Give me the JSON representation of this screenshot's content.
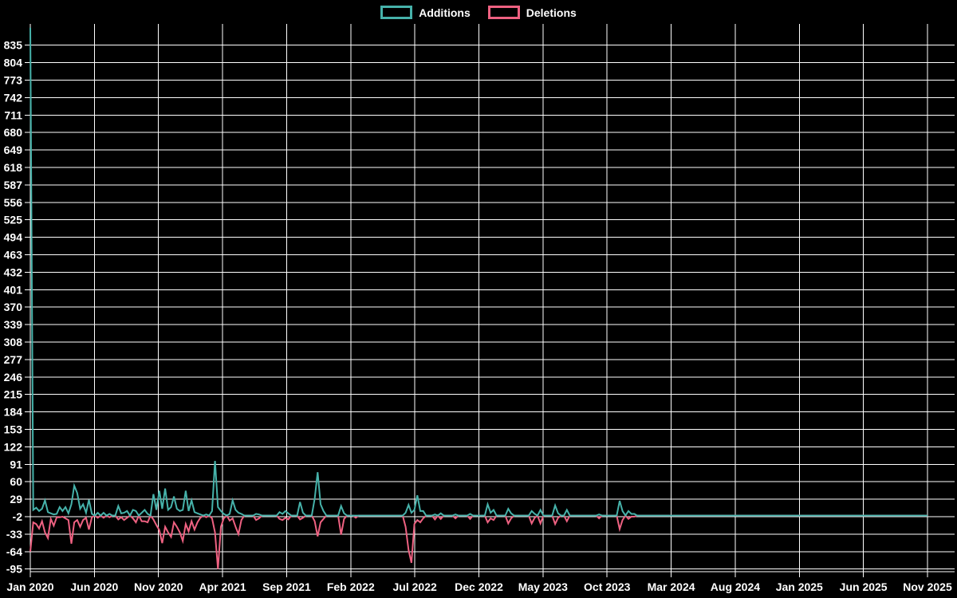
{
  "legend": [
    {
      "label": "Additions",
      "color": "#46b2aa"
    },
    {
      "label": "Deletions",
      "color": "#ee6181"
    }
  ],
  "chart_data": {
    "type": "line",
    "title": "",
    "xlabel": "",
    "ylabel": "",
    "background_color": "#000000",
    "grid": true,
    "grid_color": "#ffffff",
    "text_color": "#ffffff",
    "legend_position": "top-center",
    "x_tick_labels": [
      "Jan 2020",
      "Jun 2020",
      "Nov 2020",
      "Apr 2021",
      "Sep 2021",
      "Feb 2022",
      "Jul 2022",
      "Dec 2022",
      "May 2023",
      "Oct 2023",
      "Mar 2024",
      "Aug 2024",
      "Jan 2025",
      "Jun 2025",
      "Nov 2025"
    ],
    "y_ticks": [
      835,
      804,
      773,
      742,
      711,
      680,
      649,
      618,
      587,
      556,
      525,
      494,
      463,
      432,
      401,
      370,
      339,
      308,
      277,
      246,
      215,
      184,
      153,
      122,
      91,
      60,
      29,
      -2,
      -33,
      -64,
      -95
    ],
    "ylim": [
      -109,
      880
    ],
    "x_start": "Jan 2020",
    "x_end": "Nov 2025",
    "x_unit": "week",
    "total_weeks": 307,
    "flat_default_value": 0,
    "series": [
      {
        "name": "Additions",
        "color": "#46b2aa",
        "points": [
          [
            0,
            866
          ],
          [
            1,
            10
          ],
          [
            2,
            14
          ],
          [
            3,
            8
          ],
          [
            4,
            12
          ],
          [
            5,
            27
          ],
          [
            6,
            6
          ],
          [
            7,
            4
          ],
          [
            8,
            2
          ],
          [
            9,
            3
          ],
          [
            10,
            15
          ],
          [
            11,
            8
          ],
          [
            12,
            15
          ],
          [
            13,
            4
          ],
          [
            14,
            20
          ],
          [
            15,
            53
          ],
          [
            16,
            40
          ],
          [
            17,
            12
          ],
          [
            18,
            20
          ],
          [
            19,
            5
          ],
          [
            20,
            28
          ],
          [
            21,
            3
          ],
          [
            23,
            5
          ],
          [
            25,
            5
          ],
          [
            27,
            3
          ],
          [
            30,
            17
          ],
          [
            31,
            4
          ],
          [
            32,
            5
          ],
          [
            33,
            8
          ],
          [
            35,
            10
          ],
          [
            36,
            8
          ],
          [
            38,
            5
          ],
          [
            39,
            10
          ],
          [
            40,
            3
          ],
          [
            42,
            38
          ],
          [
            43,
            10
          ],
          [
            44,
            44
          ],
          [
            45,
            12
          ],
          [
            46,
            48
          ],
          [
            47,
            10
          ],
          [
            48,
            15
          ],
          [
            49,
            34
          ],
          [
            50,
            12
          ],
          [
            51,
            8
          ],
          [
            52,
            10
          ],
          [
            53,
            44
          ],
          [
            54,
            8
          ],
          [
            55,
            27
          ],
          [
            56,
            6
          ],
          [
            57,
            4
          ],
          [
            58,
            2
          ],
          [
            60,
            2
          ],
          [
            62,
            8
          ],
          [
            63,
            97
          ],
          [
            64,
            15
          ],
          [
            65,
            8
          ],
          [
            66,
            3
          ],
          [
            68,
            3
          ],
          [
            69,
            27
          ],
          [
            70,
            10
          ],
          [
            71,
            5
          ],
          [
            72,
            3
          ],
          [
            77,
            3
          ],
          [
            78,
            2
          ],
          [
            85,
            6
          ],
          [
            86,
            3
          ],
          [
            87,
            8
          ],
          [
            88,
            4
          ],
          [
            92,
            24
          ],
          [
            93,
            5
          ],
          [
            97,
            30
          ],
          [
            98,
            77
          ],
          [
            99,
            20
          ],
          [
            100,
            8
          ],
          [
            106,
            17
          ],
          [
            107,
            4
          ],
          [
            128,
            5
          ],
          [
            129,
            19
          ],
          [
            130,
            5
          ],
          [
            131,
            10
          ],
          [
            132,
            36
          ],
          [
            133,
            8
          ],
          [
            134,
            8
          ],
          [
            138,
            2
          ],
          [
            140,
            4
          ],
          [
            145,
            2
          ],
          [
            150,
            3
          ],
          [
            156,
            20
          ],
          [
            157,
            5
          ],
          [
            158,
            10
          ],
          [
            163,
            12
          ],
          [
            164,
            4
          ],
          [
            171,
            8
          ],
          [
            172,
            3
          ],
          [
            174,
            10
          ],
          [
            179,
            18
          ],
          [
            180,
            4
          ],
          [
            183,
            10
          ],
          [
            194,
            2
          ],
          [
            201,
            26
          ],
          [
            202,
            8
          ],
          [
            204,
            8
          ],
          [
            205,
            3
          ],
          [
            206,
            3
          ]
        ]
      },
      {
        "name": "Deletions",
        "color": "#ee6181",
        "points": [
          [
            0,
            -64
          ],
          [
            1,
            -12
          ],
          [
            2,
            -15
          ],
          [
            3,
            -23
          ],
          [
            4,
            -10
          ],
          [
            5,
            -30
          ],
          [
            6,
            -40
          ],
          [
            7,
            -6
          ],
          [
            8,
            -18
          ],
          [
            9,
            -3
          ],
          [
            10,
            -3
          ],
          [
            11,
            -2
          ],
          [
            12,
            -5
          ],
          [
            13,
            -8
          ],
          [
            14,
            -50
          ],
          [
            15,
            -12
          ],
          [
            16,
            -8
          ],
          [
            17,
            -20
          ],
          [
            18,
            -8
          ],
          [
            19,
            -4
          ],
          [
            20,
            -25
          ],
          [
            21,
            -3
          ],
          [
            23,
            -4
          ],
          [
            25,
            -4
          ],
          [
            27,
            -3
          ],
          [
            30,
            -7
          ],
          [
            31,
            -3
          ],
          [
            32,
            -8
          ],
          [
            33,
            -4
          ],
          [
            35,
            -5
          ],
          [
            36,
            -12
          ],
          [
            38,
            -10
          ],
          [
            39,
            -10
          ],
          [
            40,
            -12
          ],
          [
            42,
            -7
          ],
          [
            43,
            -17
          ],
          [
            44,
            -26
          ],
          [
            45,
            -49
          ],
          [
            46,
            -20
          ],
          [
            47,
            -30
          ],
          [
            48,
            -38
          ],
          [
            49,
            -12
          ],
          [
            50,
            -20
          ],
          [
            51,
            -30
          ],
          [
            52,
            -45
          ],
          [
            53,
            -15
          ],
          [
            54,
            -28
          ],
          [
            55,
            -10
          ],
          [
            56,
            -25
          ],
          [
            57,
            -12
          ],
          [
            58,
            -4
          ],
          [
            60,
            -3
          ],
          [
            62,
            -5
          ],
          [
            63,
            -30
          ],
          [
            64,
            -95
          ],
          [
            65,
            -20
          ],
          [
            66,
            -5
          ],
          [
            68,
            -9
          ],
          [
            69,
            -5
          ],
          [
            70,
            -20
          ],
          [
            71,
            -33
          ],
          [
            72,
            -8
          ],
          [
            77,
            -8
          ],
          [
            78,
            -5
          ],
          [
            85,
            -6
          ],
          [
            86,
            -8
          ],
          [
            87,
            -4
          ],
          [
            88,
            -7
          ],
          [
            92,
            -7
          ],
          [
            93,
            -4
          ],
          [
            97,
            -10
          ],
          [
            98,
            -37
          ],
          [
            99,
            -12
          ],
          [
            100,
            -6
          ],
          [
            106,
            -34
          ],
          [
            107,
            -6
          ],
          [
            111,
            -4
          ],
          [
            128,
            -20
          ],
          [
            129,
            -61
          ],
          [
            130,
            -84
          ],
          [
            131,
            -15
          ],
          [
            132,
            -8
          ],
          [
            133,
            -12
          ],
          [
            134,
            -5
          ],
          [
            138,
            -7
          ],
          [
            140,
            -6
          ],
          [
            145,
            -5
          ],
          [
            150,
            -6
          ],
          [
            156,
            -12
          ],
          [
            157,
            -5
          ],
          [
            158,
            -8
          ],
          [
            163,
            -14
          ],
          [
            164,
            -5
          ],
          [
            171,
            -14
          ],
          [
            172,
            -4
          ],
          [
            174,
            -14
          ],
          [
            179,
            -15
          ],
          [
            180,
            -4
          ],
          [
            183,
            -10
          ],
          [
            194,
            -5
          ],
          [
            201,
            -24
          ],
          [
            202,
            -8
          ],
          [
            204,
            -6
          ],
          [
            205,
            -2
          ],
          [
            206,
            -2
          ]
        ]
      }
    ]
  }
}
